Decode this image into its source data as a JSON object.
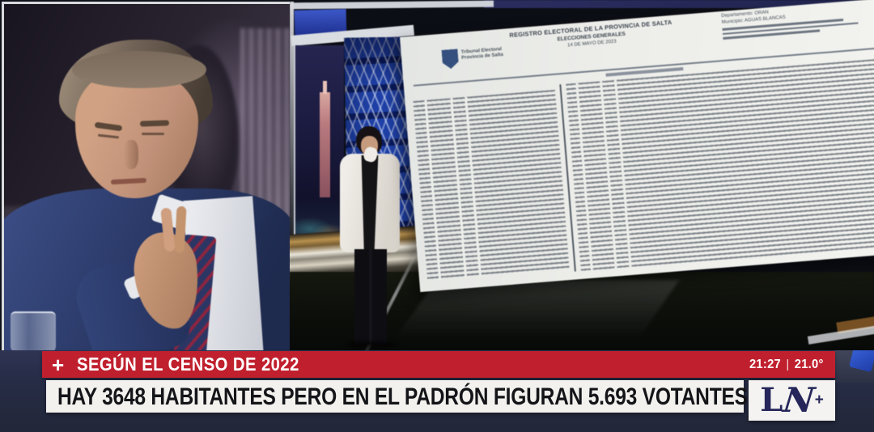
{
  "chyron": {
    "plus_icon": "+",
    "kicker_text": "SEGÚN EL CENSO DE 2022",
    "headline_text": "HAY 3648 HABITANTES PERO EN EL PADRÓN FIGURAN 5.693 VOTANTES",
    "clock": {
      "time": "21:27",
      "separator": "|",
      "temperature": "21.0°"
    },
    "colors": {
      "banner_red": "#c0202e",
      "banner_white": "#f3f1ee",
      "background_navy": "#272d47"
    }
  },
  "channel_logo": {
    "letter_l": "L",
    "letter_n": "N",
    "plus": "+",
    "color": "#26265a"
  },
  "screen_document": {
    "title": "REGISTRO ELECTORAL DE LA PROVINCIA DE SALTA",
    "subtitle": "ELECCIONES GENERALES",
    "date_line": "14 DE MAYO DE 2023",
    "org_name_line1": "Tribunal Electoral",
    "org_name_line2": "Provincia de Salta",
    "field_department": "Departamento: ORAN",
    "field_municipality": "Municipio: AGUAS BLANCAS"
  }
}
